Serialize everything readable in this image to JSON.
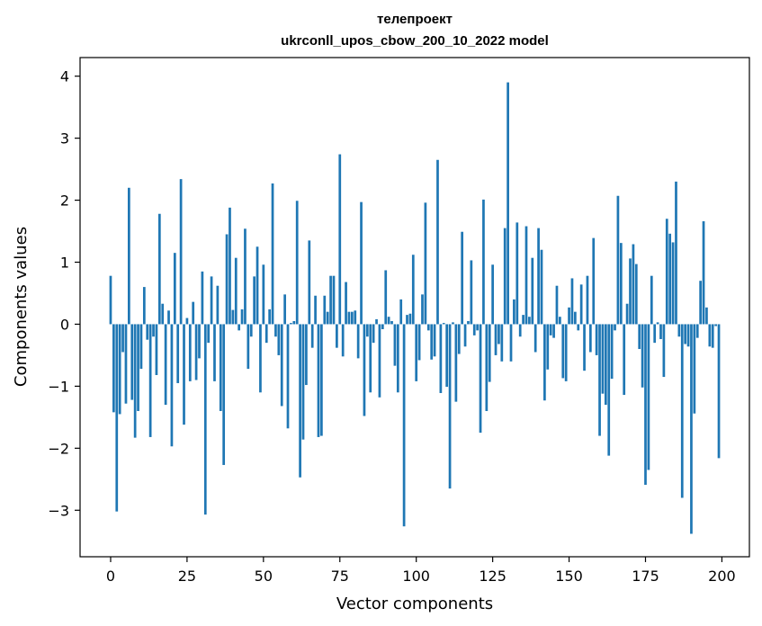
{
  "chart_data": {
    "type": "bar",
    "title": "телепроект",
    "subtitle": "ukrconll_upos_cbow_200_10_2022 model",
    "xlabel": "Vector components",
    "ylabel": "Components values",
    "xlim": [
      -10,
      209
    ],
    "ylim": [
      -3.75,
      4.3
    ],
    "xticks": [
      0,
      25,
      50,
      75,
      100,
      125,
      150,
      175,
      200
    ],
    "yticks": [
      -3,
      -2,
      -1,
      0,
      1,
      2,
      3,
      4
    ],
    "ytick_labels": [
      "−3",
      "−2",
      "−1",
      "0",
      "1",
      "2",
      "3",
      "4"
    ],
    "bar_color": "#1f77b4",
    "grid": false,
    "x": [
      0,
      1,
      2,
      3,
      4,
      5,
      6,
      7,
      8,
      9,
      10,
      11,
      12,
      13,
      14,
      15,
      16,
      17,
      18,
      19,
      20,
      21,
      22,
      23,
      24,
      25,
      26,
      27,
      28,
      29,
      30,
      31,
      32,
      33,
      34,
      35,
      36,
      37,
      38,
      39,
      40,
      41,
      42,
      43,
      44,
      45,
      46,
      47,
      48,
      49,
      50,
      51,
      52,
      53,
      54,
      55,
      56,
      57,
      58,
      59,
      60,
      61,
      62,
      63,
      64,
      65,
      66,
      67,
      68,
      69,
      70,
      71,
      72,
      73,
      74,
      75,
      76,
      77,
      78,
      79,
      80,
      81,
      82,
      83,
      84,
      85,
      86,
      87,
      88,
      89,
      90,
      91,
      92,
      93,
      94,
      95,
      96,
      97,
      98,
      99,
      100,
      101,
      102,
      103,
      104,
      105,
      106,
      107,
      108,
      109,
      110,
      111,
      112,
      113,
      114,
      115,
      116,
      117,
      118,
      119,
      120,
      121,
      122,
      123,
      124,
      125,
      126,
      127,
      128,
      129,
      130,
      131,
      132,
      133,
      134,
      135,
      136,
      137,
      138,
      139,
      140,
      141,
      142,
      143,
      144,
      145,
      146,
      147,
      148,
      149,
      150,
      151,
      152,
      153,
      154,
      155,
      156,
      157,
      158,
      159,
      160,
      161,
      162,
      163,
      164,
      165,
      166,
      167,
      168,
      169,
      170,
      171,
      172,
      173,
      174,
      175,
      176,
      177,
      178,
      179,
      180,
      181,
      182,
      183,
      184,
      185,
      186,
      187,
      188,
      189,
      190,
      191,
      192,
      193,
      194,
      195,
      196,
      197,
      198,
      199
    ],
    "values": [
      0.78,
      -1.42,
      -3.02,
      -1.45,
      -0.45,
      -1.28,
      2.2,
      -1.22,
      -1.83,
      -1.4,
      -0.72,
      0.6,
      -0.25,
      -1.82,
      -0.2,
      -0.82,
      1.78,
      0.33,
      -1.3,
      0.22,
      -1.97,
      1.15,
      -0.95,
      2.34,
      -1.62,
      0.1,
      -0.92,
      0.36,
      -0.9,
      -0.55,
      0.85,
      -3.07,
      -0.3,
      0.77,
      -0.92,
      0.62,
      -1.4,
      -2.27,
      1.45,
      1.88,
      0.23,
      1.07,
      -0.1,
      0.24,
      1.54,
      -0.72,
      -0.2,
      0.77,
      1.25,
      -1.1,
      0.96,
      -0.3,
      0.24,
      2.27,
      -0.2,
      -0.5,
      -1.32,
      0.48,
      -1.68,
      0.02,
      0.05,
      1.99,
      -2.47,
      -1.86,
      -0.98,
      1.35,
      -0.38,
      0.46,
      -1.82,
      -1.8,
      0.46,
      0.2,
      0.78,
      0.78,
      -0.38,
      2.74,
      -0.52,
      0.68,
      0.2,
      0.2,
      0.22,
      -0.55,
      1.97,
      -1.48,
      -0.2,
      -1.1,
      -0.3,
      0.08,
      -1.18,
      -0.08,
      0.87,
      0.12,
      0.05,
      -0.67,
      -1.1,
      0.4,
      -3.26,
      0.15,
      0.17,
      1.12,
      -0.92,
      -0.58,
      0.48,
      1.96,
      -0.1,
      -0.57,
      -0.52,
      2.65,
      -1.11,
      0.02,
      -1.01,
      -2.65,
      0.03,
      -1.25,
      -0.48,
      1.49,
      -0.36,
      0.05,
      1.03,
      -0.18,
      -0.1,
      -1.75,
      2.01,
      -1.4,
      -0.93,
      0.96,
      -0.5,
      -0.32,
      -0.6,
      1.55,
      3.9,
      -0.6,
      0.4,
      1.64,
      -0.2,
      0.15,
      1.58,
      0.12,
      1.07,
      -0.45,
      1.55,
      1.2,
      -1.23,
      -0.73,
      -0.18,
      -0.22,
      0.62,
      0.12,
      -0.87,
      -0.92,
      0.27,
      0.74,
      0.2,
      -0.1,
      0.64,
      -0.75,
      0.78,
      -0.45,
      1.39,
      -0.5,
      -1.8,
      -1.12,
      -1.3,
      -2.12,
      -0.88,
      -0.1,
      2.07,
      1.31,
      -1.14,
      0.33,
      1.06,
      1.29,
      0.97,
      -0.4,
      -1.02,
      -2.59,
      -2.35,
      0.78,
      -0.3,
      0.03,
      -0.24,
      -0.85,
      1.7,
      1.46,
      1.32,
      2.3,
      -0.2,
      -2.8,
      -0.32,
      -0.36,
      -3.38,
      -1.44,
      -0.22,
      0.7,
      1.66,
      0.27,
      -0.36,
      -0.38,
      -0.03,
      -2.16
    ]
  }
}
